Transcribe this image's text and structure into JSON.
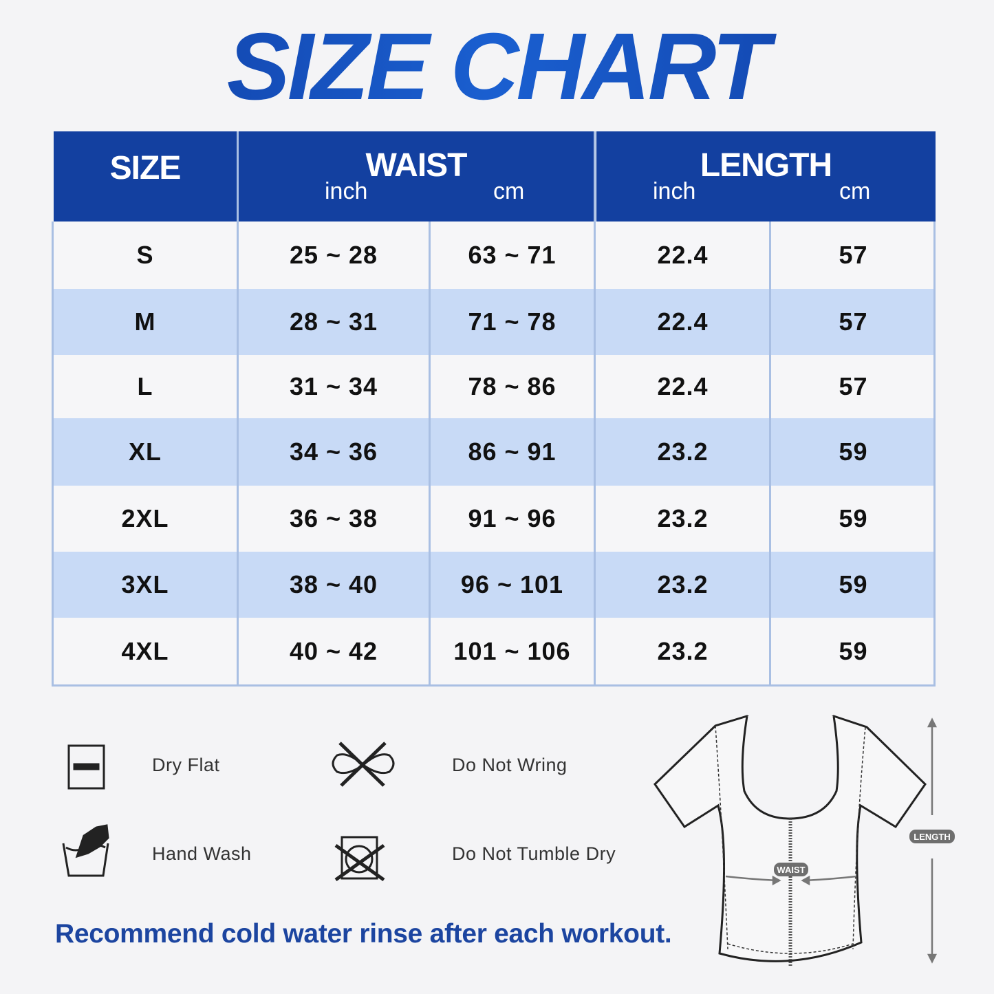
{
  "title": "SIZE CHART",
  "table": {
    "headers": {
      "size": "SIZE",
      "waist": "WAIST",
      "length": "LENGTH",
      "waist_units": [
        "inch",
        "cm"
      ],
      "length_units": [
        "inch",
        "cm"
      ]
    },
    "rows": [
      {
        "size": "S",
        "waist_inch": "25 ~ 28",
        "waist_cm": "63 ~ 71",
        "length_inch": "22.4",
        "length_cm": "57"
      },
      {
        "size": "M",
        "waist_inch": "28 ~ 31",
        "waist_cm": "71 ~ 78",
        "length_inch": "22.4",
        "length_cm": "57"
      },
      {
        "size": "L",
        "waist_inch": "31 ~ 34",
        "waist_cm": "78 ~ 86",
        "length_inch": "22.4",
        "length_cm": "57"
      },
      {
        "size": "XL",
        "waist_inch": "34 ~ 36",
        "waist_cm": "86 ~ 91",
        "length_inch": "23.2",
        "length_cm": "59"
      },
      {
        "size": "2XL",
        "waist_inch": "36 ~ 38",
        "waist_cm": "91 ~ 96",
        "length_inch": "23.2",
        "length_cm": "59"
      },
      {
        "size": "3XL",
        "waist_inch": "38 ~ 40",
        "waist_cm": "96 ~ 101",
        "length_inch": "23.2",
        "length_cm": "59"
      },
      {
        "size": "4XL",
        "waist_inch": "40 ~ 42",
        "waist_cm": "101 ~ 106",
        "length_inch": "23.2",
        "length_cm": "59"
      }
    ]
  },
  "care": [
    {
      "icon": "dry-flat-icon",
      "label": "Dry Flat"
    },
    {
      "icon": "do-not-wring-icon",
      "label": "Do Not Wring"
    },
    {
      "icon": "hand-wash-icon",
      "label": "Hand Wash"
    },
    {
      "icon": "do-not-tumble-dry-icon",
      "label": "Do Not Tumble Dry"
    }
  ],
  "note": "Recommend cold water rinse after each workout.",
  "diagram": {
    "waist_label": "WAIST",
    "length_label": "LENGTH"
  },
  "colors": {
    "header_blue": "#1340a0",
    "stripe": "#c8daf6",
    "accent_text": "#1c45a0"
  }
}
